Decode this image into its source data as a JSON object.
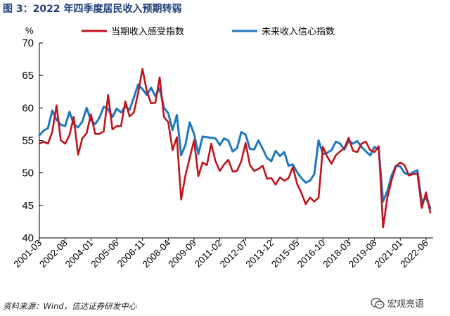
{
  "header": {
    "title": "图 3：2022 年四季度居民收入预期转弱"
  },
  "footer": {
    "source": "资料来源：Wind，信达证券研发中心",
    "watermark": "宏观亮语"
  },
  "colors": {
    "current": "#c0141c",
    "future": "#1f78c0",
    "axis": "#000000",
    "title": "#1f3f77"
  },
  "chart_data": {
    "type": "line",
    "title": "图 3：2022 年四季度居民收入预期转弱",
    "ylabel": "%",
    "ylim": [
      40,
      70
    ],
    "yticks": [
      40,
      45,
      50,
      55,
      60,
      65,
      70
    ],
    "grid": false,
    "legend": "top",
    "x_start_quarter": "2001-03",
    "x_step": "quarter",
    "x_tick_labels": [
      "2001-03",
      "2002-08",
      "2004-01",
      "2005-06",
      "2006-11",
      "2008-04",
      "2009-09",
      "2011-02",
      "2012-07",
      "2013-12",
      "2015-05",
      "2016-10",
      "2018-03",
      "2019-08",
      "2021-01",
      "2022-06"
    ],
    "series": [
      {
        "name": "当期收入感受指数",
        "color": "#c0141c",
        "values": [
          54.5,
          54.8,
          54.5,
          56.3,
          60.4,
          55.0,
          54.5,
          55.8,
          58.6,
          52.8,
          55.3,
          56.1,
          59.0,
          56.0,
          56.0,
          56.4,
          62.0,
          56.7,
          57.2,
          57.2,
          61.0,
          58.7,
          59.3,
          62.3,
          66.0,
          62.6,
          60.7,
          60.8,
          64.7,
          58.6,
          57.8,
          53.5,
          55.5,
          45.9,
          49.6,
          52.3,
          55.0,
          49.5,
          51.6,
          51.2,
          54.5,
          51.8,
          50.3,
          51.3,
          52.0,
          50.2,
          50.3,
          51.8,
          54.6,
          51.2,
          50.3,
          50.6,
          51.1,
          49.1,
          49.2,
          48.2,
          49.3,
          48.8,
          49.2,
          50.9,
          48.3,
          46.9,
          45.2,
          46.2,
          45.6,
          46.2,
          54.0,
          52.5,
          51.4,
          52.7,
          53.3,
          53.8,
          55.4,
          53.4,
          53.2,
          54.5,
          54.8,
          53.5,
          53.2,
          54.1,
          41.6,
          46.2,
          48.9,
          51.0,
          51.6,
          51.2,
          49.6,
          49.8,
          49.9,
          44.6,
          47.0,
          43.9
        ]
      },
      {
        "name": "未来收入信心指数",
        "color": "#1f78c0",
        "values": [
          55.8,
          56.5,
          56.9,
          59.6,
          58.2,
          57.4,
          57.2,
          59.4,
          57.5,
          57.0,
          57.9,
          60.0,
          58.1,
          57.5,
          58.5,
          60.2,
          59.8,
          58.6,
          59.9,
          59.3,
          60.2,
          59.7,
          61.6,
          63.6,
          62.9,
          62.0,
          63.1,
          61.8,
          63.0,
          60.0,
          59.2,
          56.6,
          58.9,
          52.7,
          54.3,
          57.8,
          56.0,
          52.9,
          55.6,
          55.5,
          55.4,
          55.3,
          54.3,
          55.3,
          55.0,
          53.3,
          53.8,
          56.3,
          55.9,
          53.7,
          53.6,
          55.0,
          53.7,
          52.3,
          51.8,
          53.4,
          52.6,
          53.2,
          51.1,
          51.3,
          50.1,
          49.2,
          48.5,
          48.8,
          49.8,
          55.0,
          52.9,
          53.1,
          53.5,
          54.8,
          54.5,
          53.6,
          54.9,
          54.5,
          54.9,
          54.0,
          53.3,
          52.7,
          54.0,
          53.6,
          45.6,
          47.2,
          49.6,
          51.1,
          51.0,
          50.0,
          49.7,
          50.1,
          50.4,
          45.5,
          46.2,
          44.6
        ]
      }
    ]
  }
}
